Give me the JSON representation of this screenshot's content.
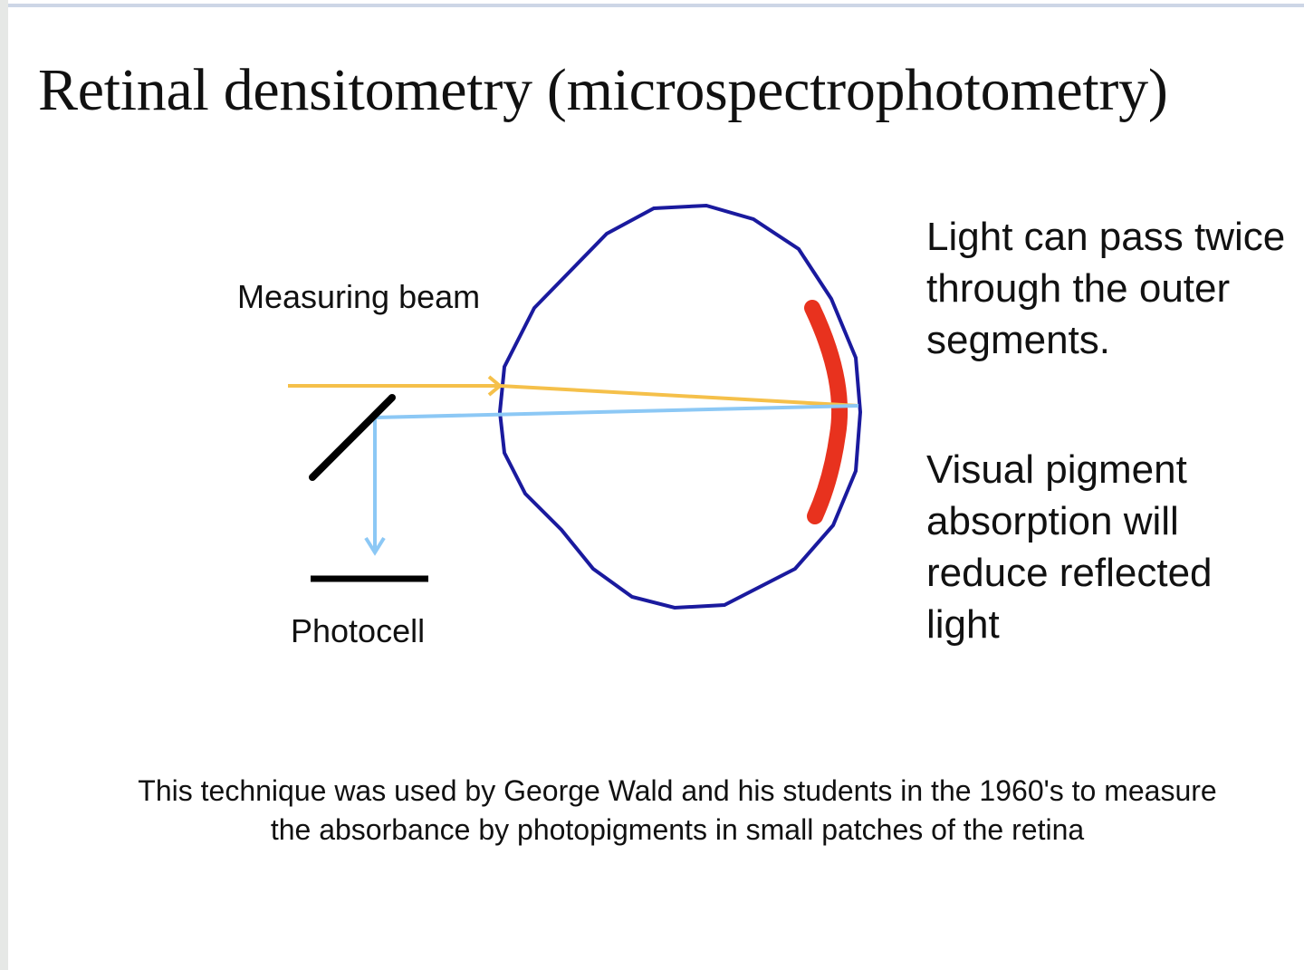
{
  "title": "Retinal densitometry (microspectrophotometry)",
  "diagram": {
    "measuring_beam_label": "Measuring beam",
    "photocell_label": "Photocell",
    "colors": {
      "eye": "#1a1a9e",
      "incident_beam": "#f5c04a",
      "reflected_beam": "#8cc8f5",
      "outer_segments": "#e8321e",
      "mirror": "#000000"
    }
  },
  "notes": [
    "Light can pass twice through the outer segments.",
    "Visual pigment absorption will reduce reflected light"
  ],
  "caption": "This technique was used by George Wald and his students in the 1960's to measure the absorbance by photopigments in small patches of the retina"
}
